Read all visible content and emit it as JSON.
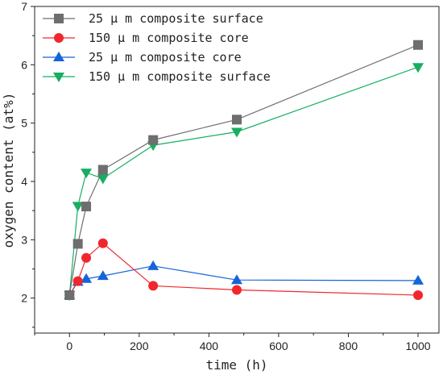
{
  "chart_data": {
    "type": "line",
    "title": "",
    "xlabel": "time (h)",
    "ylabel": "oxygen content (at%)",
    "xlim": [
      -100,
      1060
    ],
    "ylim": [
      1.4,
      7
    ],
    "xticks": [
      0,
      200,
      400,
      600,
      800,
      1000
    ],
    "yticks": [
      2,
      3,
      4,
      5,
      6,
      7
    ],
    "grid": false,
    "legend_position": "top-left",
    "series": [
      {
        "name": "25 μ m composite surface",
        "color": "#6e6e6e",
        "marker": "square",
        "x": [
          0,
          24,
          48,
          96,
          240,
          480,
          1000
        ],
        "y": [
          2.05,
          2.93,
          3.57,
          4.2,
          4.71,
          5.06,
          6.34
        ]
      },
      {
        "name": "150 μ m composite core",
        "color": "#f0282d",
        "marker": "circle",
        "x": [
          0,
          24,
          48,
          96,
          240,
          480,
          1000
        ],
        "y": [
          2.05,
          2.29,
          2.69,
          2.94,
          2.21,
          2.14,
          2.05
        ]
      },
      {
        "name": "25 μ m composite core",
        "color": "#1565d8",
        "marker": "triangle-up",
        "x": [
          0,
          24,
          48,
          96,
          240,
          480,
          1000
        ],
        "y": [
          2.05,
          2.28,
          2.33,
          2.38,
          2.55,
          2.31,
          2.3
        ]
      },
      {
        "name": "150 μ m composite surface",
        "color": "#17ae62",
        "marker": "triangle-down",
        "x": [
          0,
          24,
          48,
          96,
          240,
          480,
          1000
        ],
        "y": [
          2.05,
          3.58,
          4.15,
          4.05,
          4.62,
          4.85,
          5.96
        ]
      }
    ]
  }
}
